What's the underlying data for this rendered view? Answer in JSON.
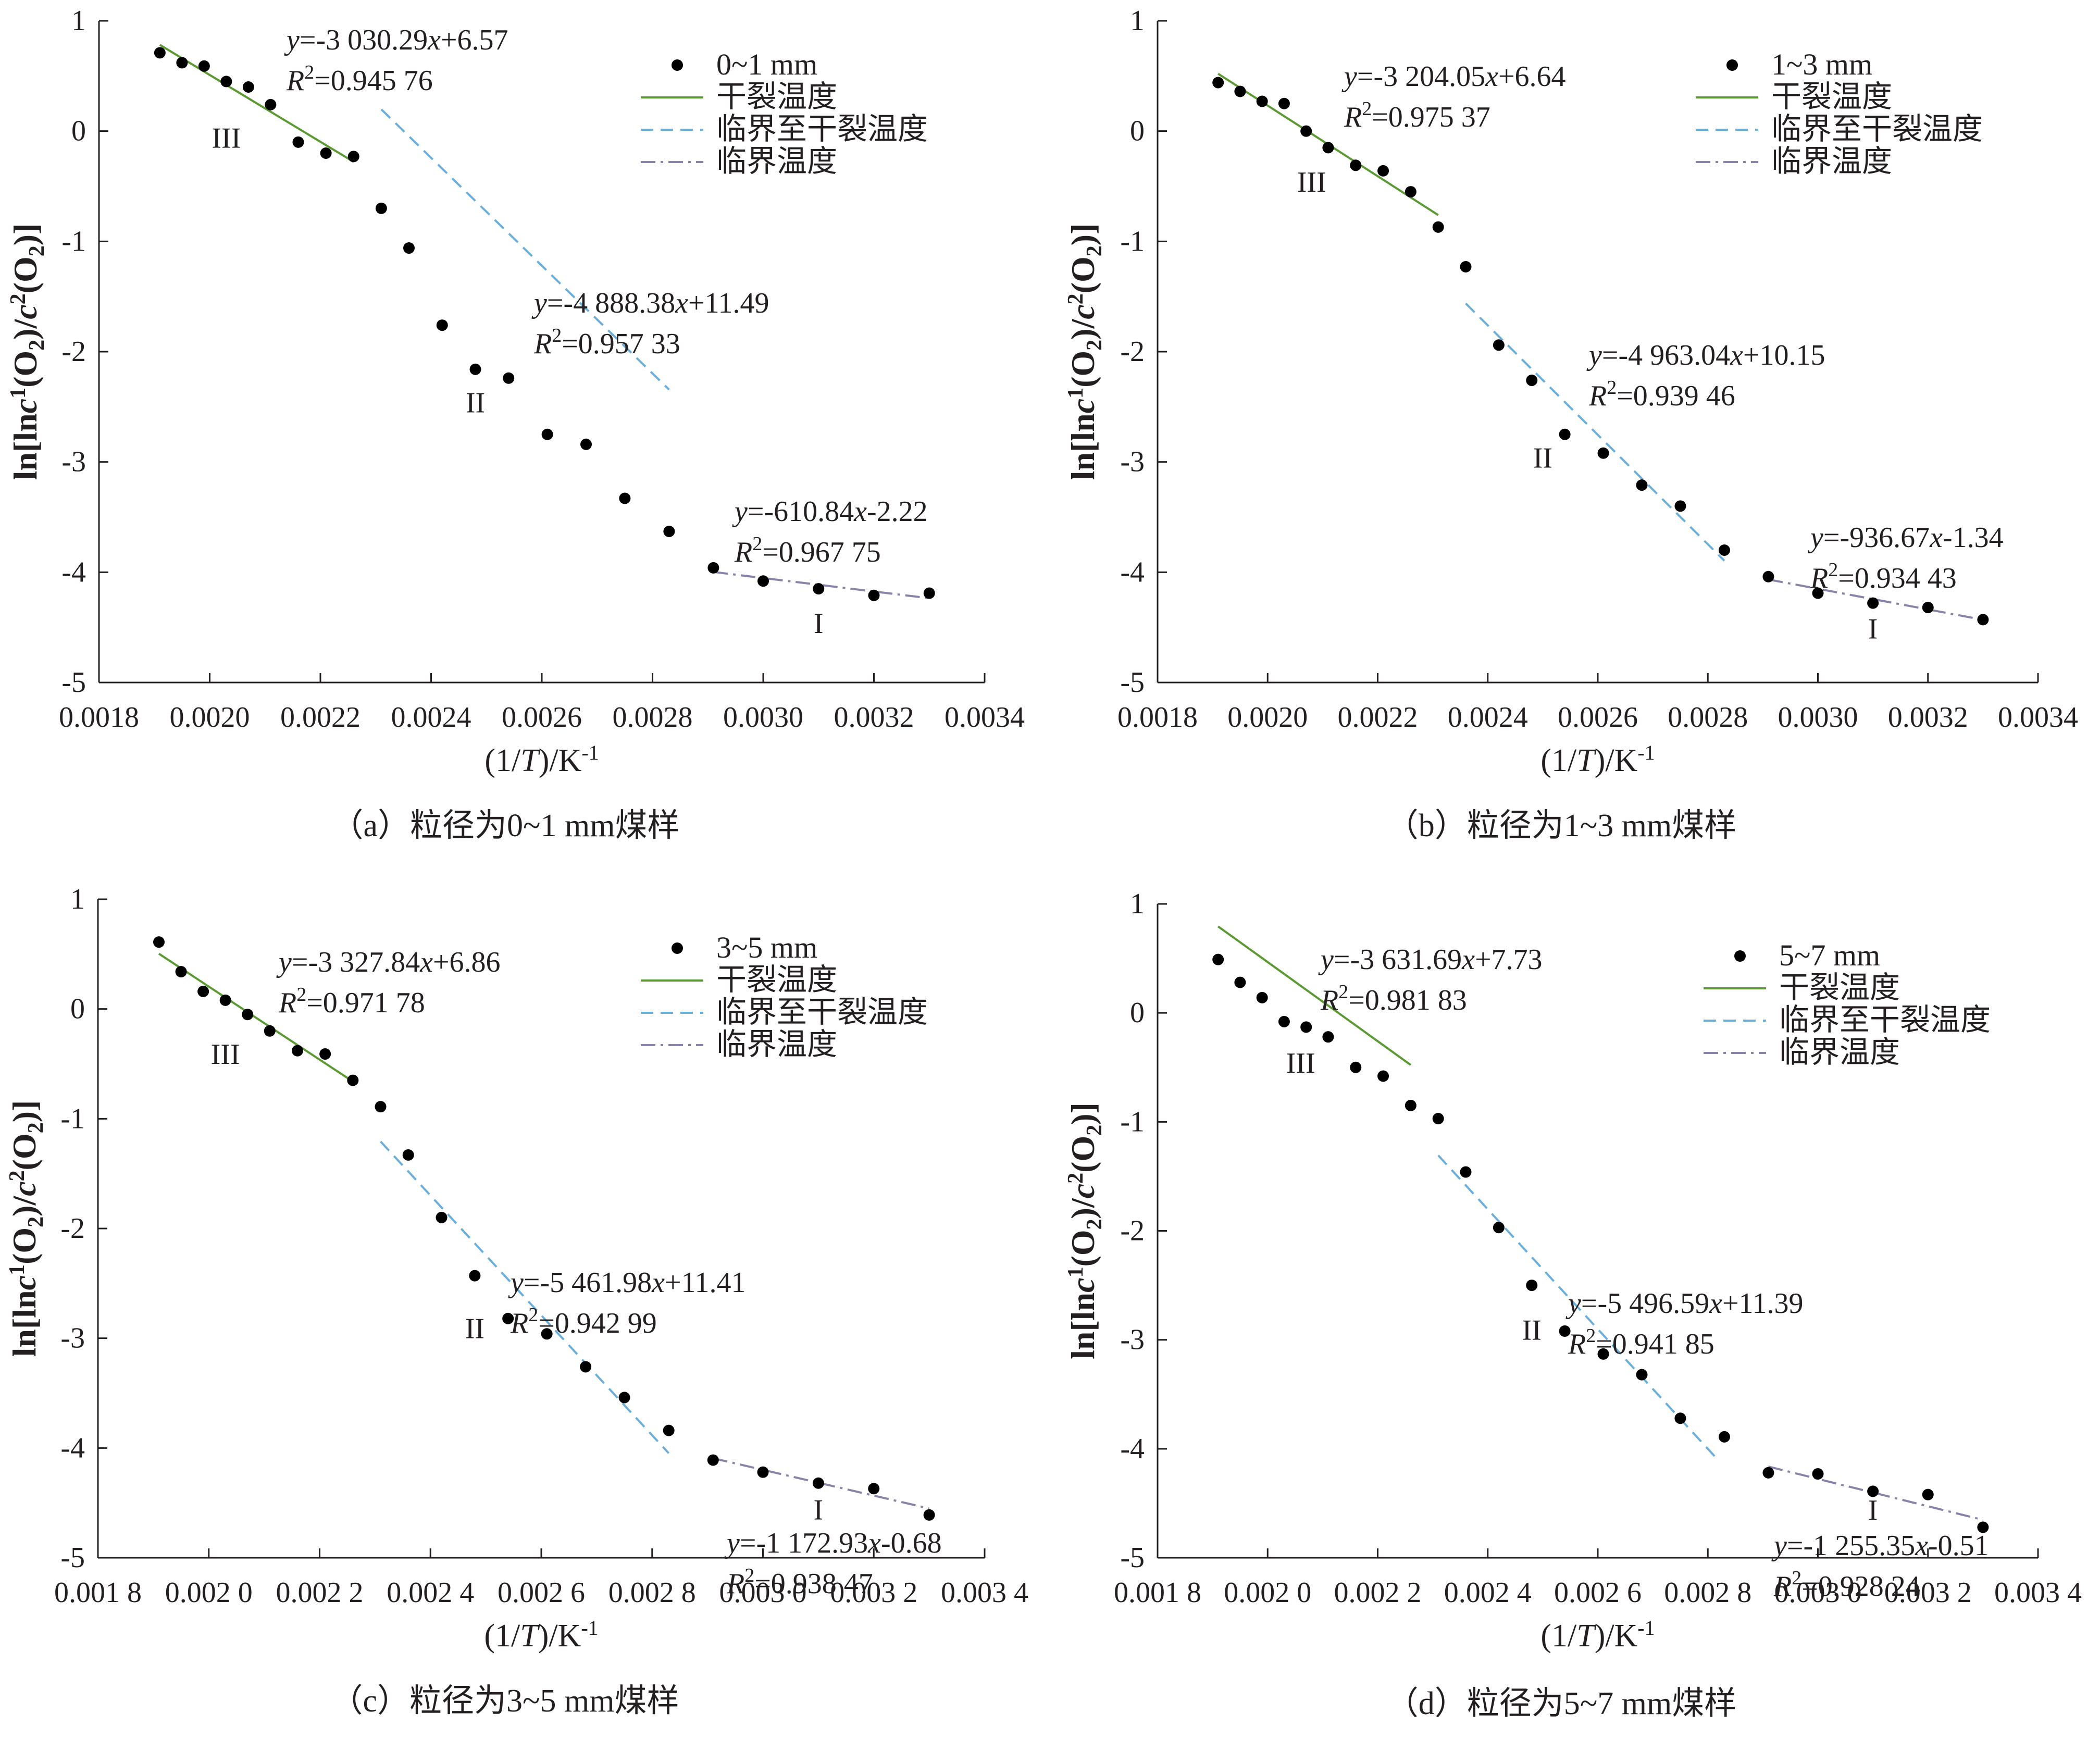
{
  "chart_data": [
    {
      "type": "scatter",
      "caption": "（a）粒径为0~1 mm煤样",
      "xlabel": "(1/T)/K-1",
      "ylabel": "ln[lnc1(O2)/c2(O2)]",
      "xlim": [
        0.0018,
        0.0034
      ],
      "ylim": [
        -5,
        1
      ],
      "xticks": [
        "0.0018",
        "0.0020",
        "0.0022",
        "0.0024",
        "0.0026",
        "0.0028",
        "0.0030",
        "0.0032",
        "0.0034"
      ],
      "yticks": [
        "1",
        "0",
        "-1",
        "-2",
        "-3",
        "-4",
        "-5"
      ],
      "legend": {
        "position": "top-right",
        "entries": [
          "0~1 mm",
          "干裂温度",
          "临界至干裂温度",
          "临界温度"
        ]
      },
      "points": {
        "x": [
          0.00191,
          0.00195,
          0.00199,
          0.00203,
          0.00207,
          0.00211,
          0.00216,
          0.00221,
          0.00226,
          0.00231,
          0.00236,
          0.00242,
          0.00248,
          0.00254,
          0.00261,
          0.00268,
          0.00275,
          0.00283,
          0.00291,
          0.003,
          0.0031,
          0.0032,
          0.0033
        ],
        "y": [
          0.71,
          0.62,
          0.59,
          0.45,
          0.4,
          0.24,
          -0.1,
          -0.2,
          -0.23,
          -0.7,
          -1.06,
          -1.76,
          -2.16,
          -2.24,
          -2.75,
          -2.84,
          -3.33,
          -3.63,
          -3.96,
          -4.08,
          -4.15,
          -4.21,
          -4.19
        ]
      },
      "fits": [
        {
          "stage": "III",
          "name": "干裂温度",
          "slope": -3030.29,
          "intercept": 6.57,
          "x_range": [
            0.00191,
            0.00226
          ],
          "equation": "y=-3 030.29x+6.57",
          "r2": "R2=0.945 76"
        },
        {
          "stage": "II",
          "name": "临界至干裂温度",
          "slope": -4888.38,
          "intercept": 11.49,
          "x_range": [
            0.00231,
            0.00283
          ],
          "equation": "y=-4 888.38x+11.49",
          "r2": "R2=0.957 33"
        },
        {
          "stage": "I",
          "name": "临界温度",
          "slope": -610.84,
          "intercept": -2.22,
          "x_range": [
            0.00291,
            0.0033
          ],
          "equation": "y=-610.84x-2.22",
          "r2": "R2=0.967 75"
        }
      ],
      "stage_labels": [
        {
          "text": "III",
          "x": 0.00203,
          "y": -0.15
        },
        {
          "text": "II",
          "x": 0.00248,
          "y": -2.55
        },
        {
          "text": "I",
          "x": 0.0031,
          "y": -4.55
        }
      ]
    },
    {
      "type": "scatter",
      "caption": "（b）粒径为1~3 mm煤样",
      "xlabel": "(1/T)/K-1",
      "ylabel": "ln[lnc1(O2)/c2(O2)]",
      "xlim": [
        0.0018,
        0.0034
      ],
      "ylim": [
        -5,
        1
      ],
      "xticks": [
        "0.0018",
        "0.0020",
        "0.0022",
        "0.0024",
        "0.0026",
        "0.0028",
        "0.0030",
        "0.0032",
        "0.0034"
      ],
      "yticks": [
        "1",
        "0",
        "-1",
        "-2",
        "-3",
        "-4",
        "-5"
      ],
      "legend": {
        "position": "top-right",
        "entries": [
          "1~3 mm",
          "干裂温度",
          "临界至干裂温度",
          "临界温度"
        ]
      },
      "points": {
        "x": [
          0.00191,
          0.00195,
          0.00199,
          0.00203,
          0.00207,
          0.00211,
          0.00216,
          0.00221,
          0.00226,
          0.00231,
          0.00236,
          0.00242,
          0.00248,
          0.00254,
          0.00261,
          0.00268,
          0.00275,
          0.00283,
          0.00291,
          0.003,
          0.0031,
          0.0032,
          0.0033
        ],
        "y": [
          0.44,
          0.36,
          0.27,
          0.25,
          0.0,
          -0.15,
          -0.31,
          -0.36,
          -0.55,
          -0.87,
          -1.23,
          -1.94,
          -2.26,
          -2.75,
          -2.92,
          -3.21,
          -3.4,
          -3.8,
          -4.04,
          -4.19,
          -4.28,
          -4.32,
          -4.43
        ]
      },
      "fits": [
        {
          "stage": "III",
          "name": "干裂温度",
          "slope": -3204.05,
          "intercept": 6.64,
          "x_range": [
            0.00191,
            0.00231
          ],
          "equation": "y=-3 204.05x+6.64",
          "r2": "R2=0.975 37"
        },
        {
          "stage": "II",
          "name": "临界至干裂温度",
          "slope": -4963.04,
          "intercept": 10.15,
          "x_range": [
            0.00236,
            0.00283
          ],
          "equation": "y=-4 963.04x+10.15",
          "r2": "R2=0.939 46"
        },
        {
          "stage": "I",
          "name": "临界温度",
          "slope": -936.67,
          "intercept": -1.34,
          "x_range": [
            0.00291,
            0.0033
          ],
          "equation": "y=-936.67x-1.34",
          "r2": "R2=0.934 43"
        }
      ],
      "stage_labels": [
        {
          "text": "III",
          "x": 0.00208,
          "y": -0.55
        },
        {
          "text": "II",
          "x": 0.0025,
          "y": -3.05
        },
        {
          "text": "I",
          "x": 0.0031,
          "y": -4.6
        }
      ]
    },
    {
      "type": "scatter",
      "caption": "（c）粒径为3~5 mm煤样",
      "xlabel": "(1/T)/K-1",
      "ylabel": "ln[lnc1(O2)/c2(O2)]",
      "xlim": [
        0.0018,
        0.0034
      ],
      "ylim": [
        -5,
        1
      ],
      "xticks": [
        "0.001 8",
        "0.002 0",
        "0.002 2",
        "0.002 4",
        "0.002 6",
        "0.002 8",
        "0.003 0",
        "0.003 2",
        "0.003 4"
      ],
      "yticks": [
        "1",
        "0",
        "-1",
        "-2",
        "-3",
        "-4",
        "-5"
      ],
      "legend": {
        "position": "top-right",
        "entries": [
          "3~5 mm",
          "干裂温度",
          "临界至干裂温度",
          "临界温度"
        ]
      },
      "points": {
        "x": [
          0.00191,
          0.00195,
          0.00199,
          0.00203,
          0.00207,
          0.00211,
          0.00216,
          0.00221,
          0.00226,
          0.00231,
          0.00236,
          0.00242,
          0.00248,
          0.00254,
          0.00261,
          0.00268,
          0.00275,
          0.00283,
          0.00291,
          0.003,
          0.0031,
          0.0032,
          0.0033
        ],
        "y": [
          0.61,
          0.34,
          0.16,
          0.08,
          -0.05,
          -0.2,
          -0.38,
          -0.41,
          -0.65,
          -0.89,
          -1.33,
          -1.9,
          -2.43,
          -2.82,
          -2.96,
          -3.26,
          -3.54,
          -3.84,
          -4.11,
          -4.22,
          -4.32,
          -4.37,
          -4.61
        ]
      },
      "fits": [
        {
          "stage": "III",
          "name": "干裂温度",
          "slope": -3327.84,
          "intercept": 6.86,
          "x_range": [
            0.00191,
            0.00226
          ],
          "equation": "y=-3 327.84x+6.86",
          "r2": "R2=0.971 78"
        },
        {
          "stage": "II",
          "name": "临界至干裂温度",
          "slope": -5461.98,
          "intercept": 11.41,
          "x_range": [
            0.00231,
            0.00283
          ],
          "equation": "y=-5 461.98x+11.41",
          "r2": "R2=0.942 99"
        },
        {
          "stage": "I",
          "name": "临界温度",
          "slope": -1172.93,
          "intercept": -0.68,
          "x_range": [
            0.00291,
            0.0033
          ],
          "equation": "y=-1 172.93x-0.68",
          "r2": "R2=0.938 47"
        }
      ],
      "stage_labels": [
        {
          "text": "III",
          "x": 0.00203,
          "y": -0.5
        },
        {
          "text": "II",
          "x": 0.00248,
          "y": -3.0
        },
        {
          "text": "I",
          "x": 0.0031,
          "y": -4.65
        }
      ]
    },
    {
      "type": "scatter",
      "caption": "（d）粒径为5~7 mm煤样",
      "xlabel": "(1/T)/K-1",
      "ylabel": "ln[lnc1(O2)/c2(O2)]",
      "xlim": [
        0.0018,
        0.0034
      ],
      "ylim": [
        -5,
        1
      ],
      "xticks": [
        "0.001 8",
        "0.002 0",
        "0.002 2",
        "0.002 4",
        "0.002 6",
        "0.002 8",
        "0.003 0",
        "0.003 2",
        "0.003 4"
      ],
      "yticks": [
        "1",
        "0",
        "-1",
        "-2",
        "-3",
        "-4",
        "-5"
      ],
      "legend": {
        "position": "top-right",
        "entries": [
          "5~7 mm",
          "干裂温度",
          "临界至干裂温度",
          "临界温度"
        ]
      },
      "points": {
        "x": [
          0.00191,
          0.00195,
          0.00199,
          0.00203,
          0.00207,
          0.00211,
          0.00216,
          0.00221,
          0.00226,
          0.00231,
          0.00236,
          0.00242,
          0.00248,
          0.00254,
          0.00261,
          0.00268,
          0.00275,
          0.00283,
          0.00291,
          0.003,
          0.0031,
          0.0032,
          0.0033
        ],
        "y": [
          0.49,
          0.28,
          0.14,
          -0.08,
          -0.13,
          -0.22,
          -0.5,
          -0.58,
          -0.85,
          -0.97,
          -1.46,
          -1.97,
          -2.5,
          -2.92,
          -3.13,
          -3.32,
          -3.72,
          -3.89,
          -4.22,
          -4.23,
          -4.39,
          -4.42,
          -4.72
        ]
      },
      "fits": [
        {
          "stage": "III",
          "name": "干裂温度",
          "slope": -3631.69,
          "intercept": 7.73,
          "x_range": [
            0.00191,
            0.00226
          ],
          "equation": "y=-3 631.69x+7.73",
          "r2": "R2=0.981 83"
        },
        {
          "stage": "II",
          "name": "临界至干裂温度",
          "slope": -5496.59,
          "intercept": 11.39,
          "x_range": [
            0.00231,
            0.00282
          ],
          "equation": "y=-5 496.59x+11.39",
          "r2": "R2=0.941 85"
        },
        {
          "stage": "I",
          "name": "临界温度",
          "slope": -1255.35,
          "intercept": -0.51,
          "x_range": [
            0.00291,
            0.0033
          ],
          "equation": "y=-1 255.35x-0.51",
          "r2": "R2=0.928 24"
        }
      ],
      "stage_labels": [
        {
          "text": "III",
          "x": 0.00206,
          "y": -0.55
        },
        {
          "text": "II",
          "x": 0.00248,
          "y": -3.0
        },
        {
          "text": "I",
          "x": 0.0031,
          "y": -4.65
        }
      ]
    }
  ],
  "style": {
    "point_color": "#000000",
    "fit_colors": {
      "III": "#5b9a32",
      "II": "#6aaedc",
      "I": "#8a82a8"
    },
    "axis_color": "#231f20"
  }
}
